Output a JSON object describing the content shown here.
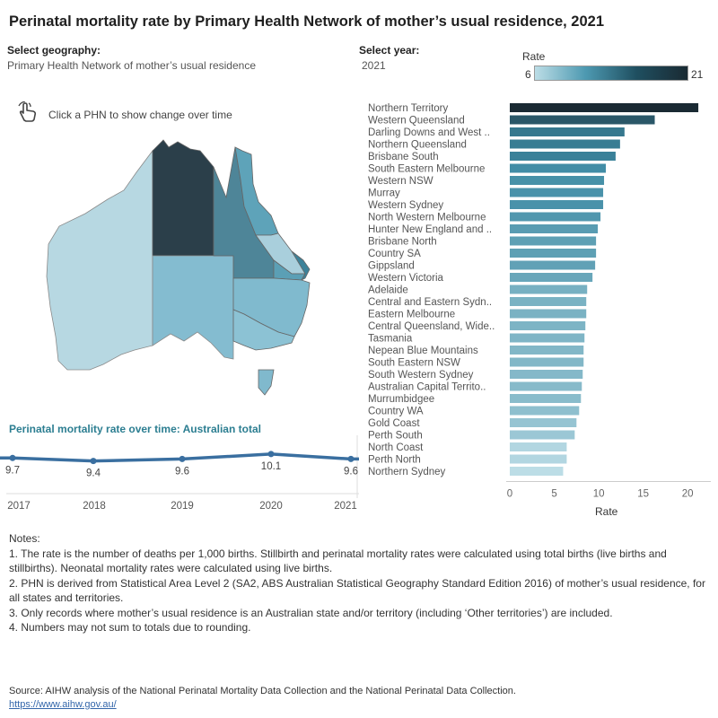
{
  "title": "Perinatal mortality rate by Primary Health Network of mother’s usual residence, 2021",
  "controls": {
    "geography_label": "Select geography:",
    "geography_value": "Primary Health Network of mother’s usual residence",
    "year_label": "Select year:",
    "year_value": "2021"
  },
  "legend": {
    "title": "Rate",
    "min": "6",
    "max": "21"
  },
  "hint": {
    "text": "Click a PHN to show change over time",
    "icon": "hand-pointer-icon"
  },
  "colors": {
    "dark": "#1a2a33",
    "mid": "#3d8aa3",
    "light": "#b7d8e2",
    "trend_line": "#3a6fa0",
    "trend_title": "#2c7e91"
  },
  "trend": {
    "title": "Perinatal mortality rate over time: Australian total",
    "years": [
      "2017",
      "2018",
      "2019",
      "2020",
      "2021"
    ],
    "values": [
      9.7,
      9.4,
      9.6,
      10.1,
      9.6
    ],
    "labels": [
      "9.7",
      "9.4",
      "9.6",
      "10.1",
      "9.6"
    ]
  },
  "chart_data": {
    "type": "bar",
    "orientation": "horizontal",
    "title": "Perinatal mortality rate by Primary Health Network of mother’s usual residence, 2021",
    "xlabel": "Rate",
    "xlim": [
      0,
      22
    ],
    "xticks": [
      "0",
      "5",
      "10",
      "15",
      "20"
    ],
    "categories": [
      "Northern Territory",
      "Western Queensland",
      "Darling Downs and West ..",
      "Northern Queensland",
      "Brisbane South",
      "South Eastern Melbourne",
      "Western NSW",
      "Murray",
      "Western Sydney",
      "North Western Melbourne",
      "Hunter New England and ..",
      "Brisbane North",
      "Country SA",
      "Gippsland",
      "Western Victoria",
      "Adelaide",
      "Central and Eastern Sydn..",
      "Eastern Melbourne",
      "Central Queensland, Wide..",
      "Tasmania",
      "Nepean Blue Mountains",
      "South Eastern NSW",
      "South Western Sydney",
      "Australian Capital Territo..",
      "Murrumbidgee",
      "Country WA",
      "Gold Coast",
      "Perth South",
      "North Coast",
      "Perth North",
      "Northern Sydney"
    ],
    "values": [
      21.2,
      16.3,
      12.9,
      12.4,
      11.9,
      10.8,
      10.6,
      10.5,
      10.5,
      10.2,
      9.9,
      9.7,
      9.7,
      9.6,
      9.3,
      8.7,
      8.6,
      8.6,
      8.5,
      8.4,
      8.3,
      8.3,
      8.2,
      8.1,
      8.0,
      7.8,
      7.5,
      7.3,
      6.4,
      6.4,
      6.0
    ]
  },
  "map": {
    "regions": [
      {
        "name": "Western Australia",
        "rate": 7.6
      },
      {
        "name": "Northern Territory",
        "rate": 21.2
      },
      {
        "name": "Western Queensland",
        "rate": 16.3
      },
      {
        "name": "Northern Queensland",
        "rate": 12.4
      },
      {
        "name": "Central Queensland",
        "rate": 8.5
      },
      {
        "name": "Darling Downs and West Moreton",
        "rate": 12.9
      },
      {
        "name": "South Australia",
        "rate": 9.2
      },
      {
        "name": "New South Wales",
        "rate": 9.8
      },
      {
        "name": "Victoria",
        "rate": 9.8
      },
      {
        "name": "Tasmania",
        "rate": 8.4
      }
    ]
  },
  "notes": {
    "heading": "Notes:",
    "items": [
      "1. The rate is the number of deaths per 1,000 births. Stillbirth and perinatal mortality rates were calculated using total births (live births and stillbirths). Neonatal mortality rates were calculated using live births.",
      "2. PHN is derived from Statistical Area Level 2 (SA2, ABS Australian Statistical Geography Standard Edition 2016) of mother’s usual residence, for all states and territories.",
      "3. Only records where mother’s usual residence is an Australian state and/or territory (including ‘Other territories’) are included.",
      "4. Numbers may not sum to totals due to rounding."
    ]
  },
  "source": {
    "text": "Source: AIHW analysis of the National Perinatal Mortality Data Collection and the National Perinatal Data Collection.",
    "link": "https://www.aihw.gov.au/"
  }
}
